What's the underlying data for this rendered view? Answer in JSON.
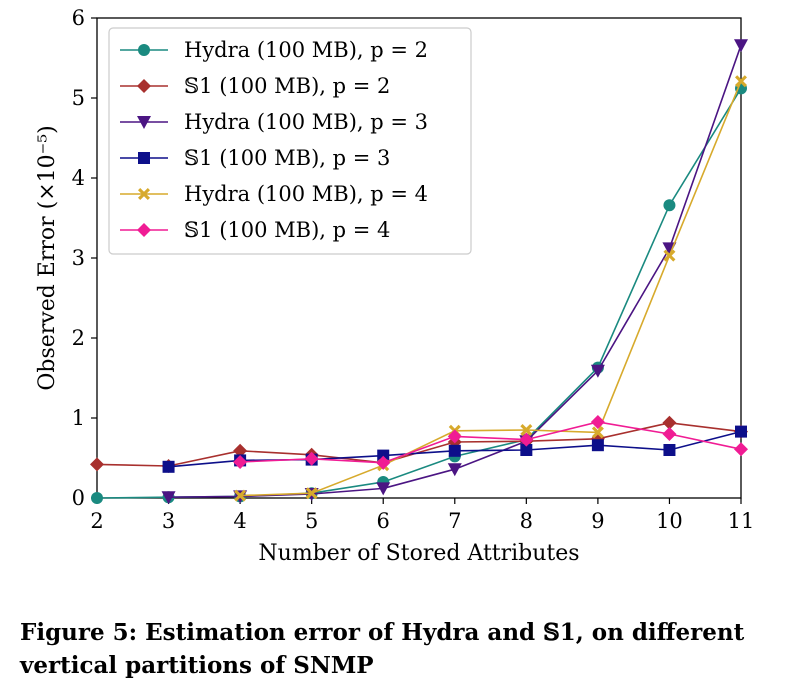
{
  "chart_data": {
    "type": "line",
    "xlabel": "Number of Stored Attributes",
    "ylabel": "Observed Error (×10⁻⁵)",
    "x": [
      2,
      3,
      4,
      5,
      6,
      7,
      8,
      9,
      10,
      11
    ],
    "xlim": [
      2,
      11
    ],
    "ylim": [
      0,
      6
    ],
    "xticks": [
      "2",
      "3",
      "4",
      "5",
      "6",
      "7",
      "8",
      "9",
      "10",
      "11"
    ],
    "yticks": [
      "0",
      "1",
      "2",
      "3",
      "4",
      "5",
      "6"
    ],
    "legend_position": "top-left",
    "series": [
      {
        "name": "Hydra (100 MB), p = 2",
        "color": "#1a8a80",
        "marker": "circle",
        "x": [
          2,
          3,
          4,
          5,
          6,
          7,
          8,
          9,
          10,
          11
        ],
        "values": [
          0.0,
          0.01,
          0.02,
          0.06,
          0.2,
          0.52,
          0.73,
          1.63,
          3.66,
          5.12
        ]
      },
      {
        "name": "𝕊1 (100 MB), p = 2",
        "color": "#a8302e",
        "marker": "diamond",
        "x": [
          2,
          3,
          4,
          5,
          6,
          7,
          8,
          9,
          10,
          11
        ],
        "values": [
          0.42,
          0.4,
          0.59,
          0.54,
          0.44,
          0.7,
          0.71,
          0.74,
          0.94,
          0.83
        ]
      },
      {
        "name": "Hydra (100 MB), p = 3",
        "color": "#4b1583",
        "marker": "triangle-down",
        "x": [
          3,
          4,
          5,
          6,
          7,
          8,
          9,
          10,
          11
        ],
        "values": [
          0.01,
          0.02,
          0.05,
          0.12,
          0.36,
          0.71,
          1.59,
          3.12,
          5.66
        ]
      },
      {
        "name": "𝕊1 (100 MB), p = 3",
        "color": "#0d0f8a",
        "marker": "square",
        "x": [
          3,
          4,
          5,
          6,
          7,
          8,
          9,
          10,
          11
        ],
        "values": [
          0.39,
          0.47,
          0.48,
          0.53,
          0.59,
          0.6,
          0.66,
          0.6,
          0.83
        ]
      },
      {
        "name": "Hydra (100 MB), p = 4",
        "color": "#d7aa2c",
        "marker": "x",
        "x": [
          4,
          5,
          6,
          7,
          8,
          9,
          10,
          11
        ],
        "values": [
          0.03,
          0.06,
          0.41,
          0.84,
          0.85,
          0.82,
          3.03,
          5.21
        ]
      },
      {
        "name": "𝕊1 (100 MB), p = 4",
        "color": "#f01c94",
        "marker": "diamond",
        "x": [
          4,
          5,
          6,
          7,
          8,
          9,
          10,
          11
        ],
        "values": [
          0.45,
          0.49,
          0.44,
          0.77,
          0.73,
          0.95,
          0.8,
          0.61
        ]
      }
    ]
  },
  "caption": "Figure 5: Estimation error of Hydra and 𝕊1, on different vertical partitions of SNMP"
}
